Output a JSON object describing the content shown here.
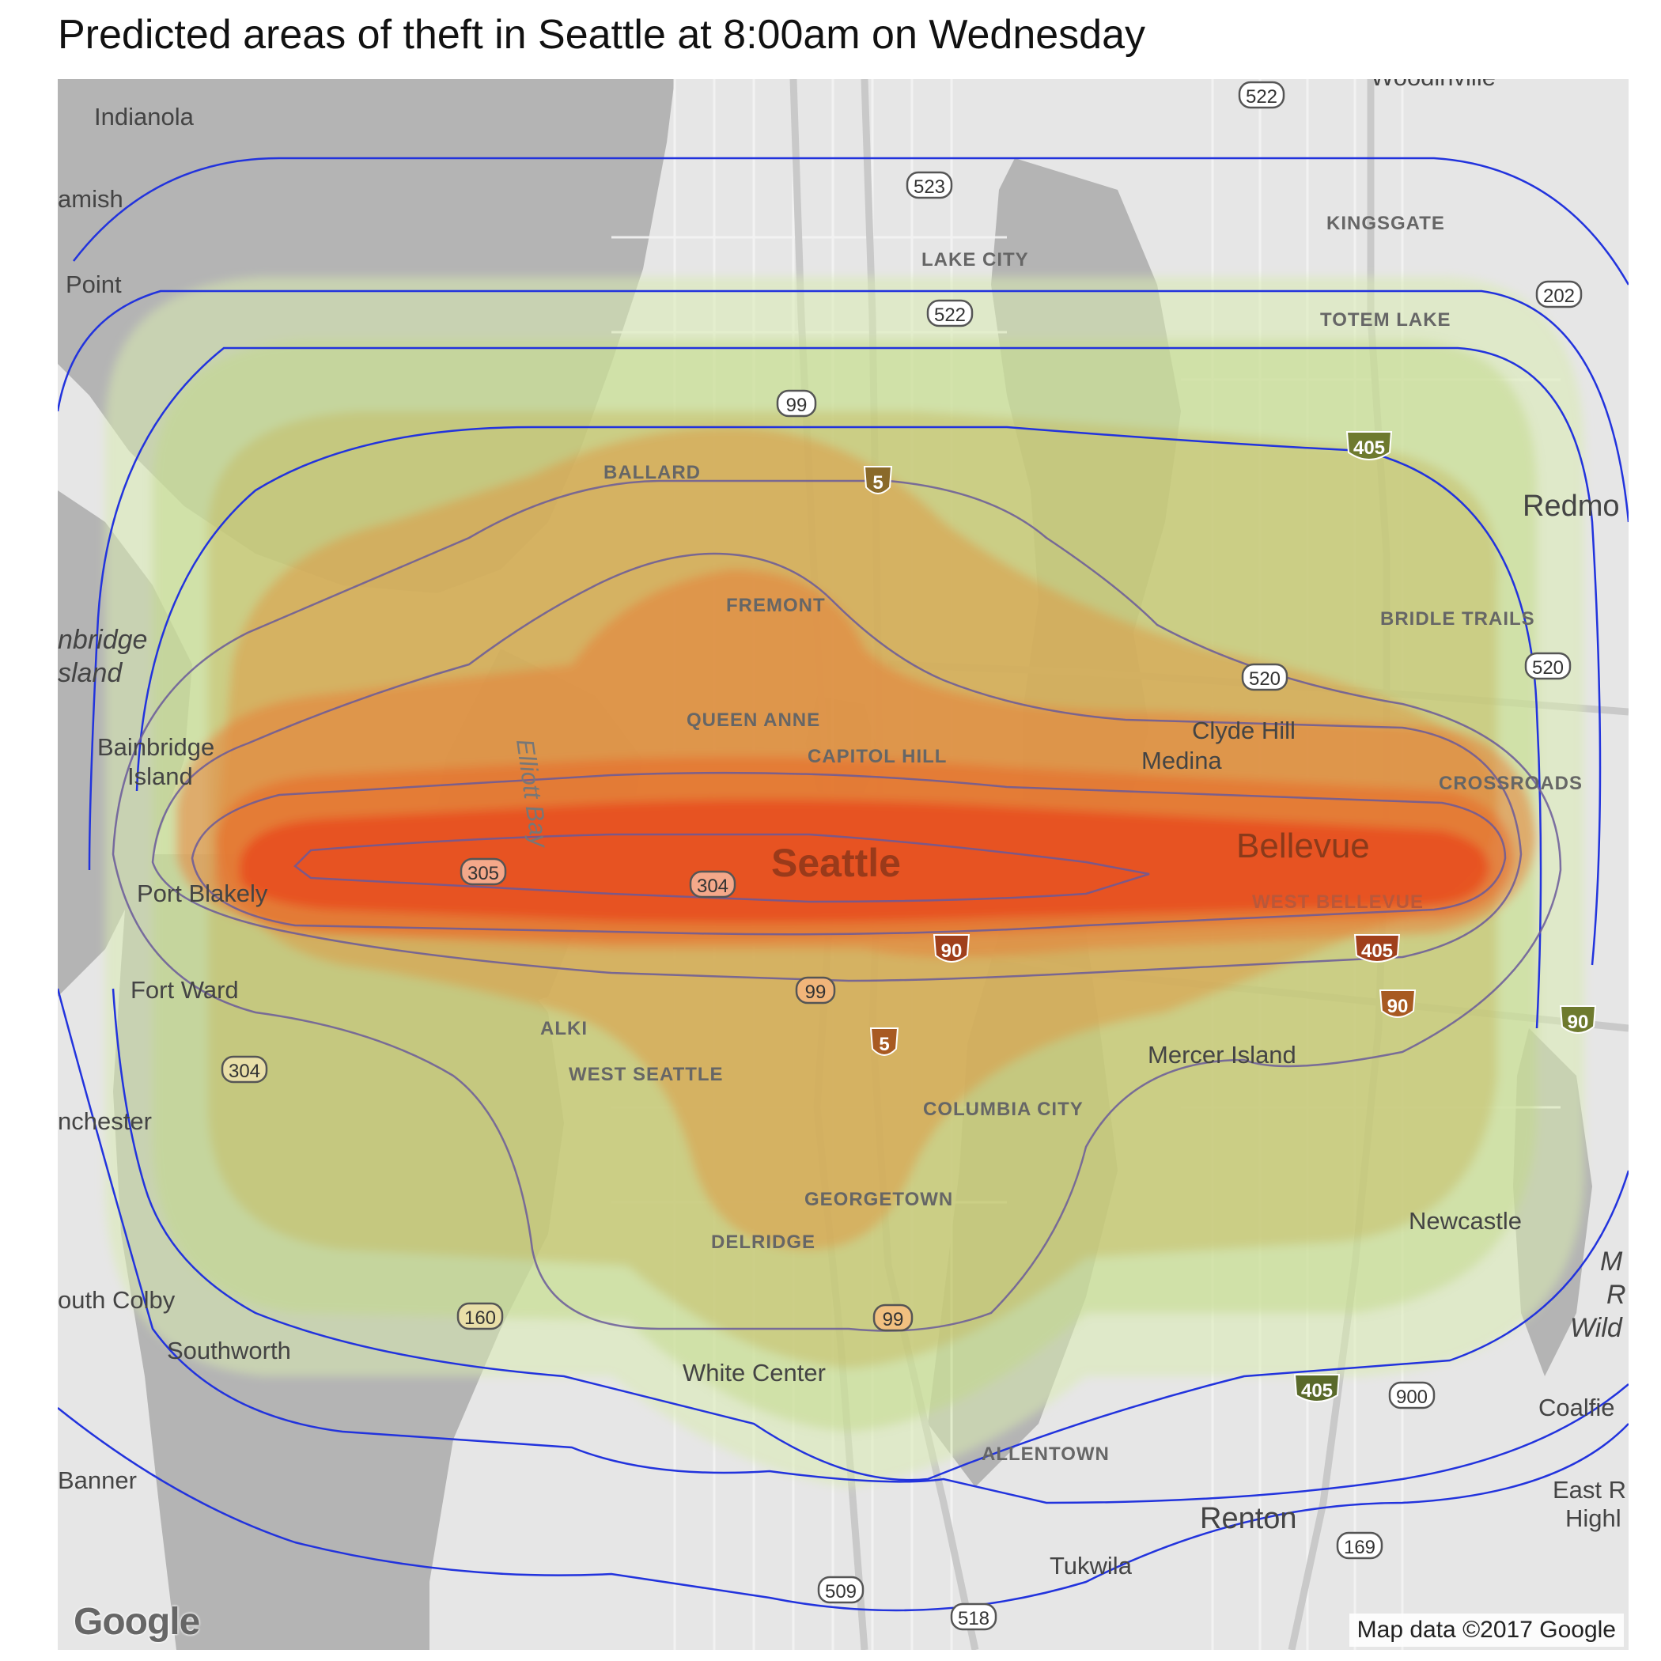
{
  "title": "Predicted areas of theft in Seattle at 8:00am on Wednesday",
  "map": {
    "attribution": "Map data ©2017 Google",
    "logo": "Google",
    "colors": {
      "water": "#b4b4b4",
      "land": "#e6e6e6",
      "contour_line": "#2233dd",
      "fill_low": "#d8ebb0",
      "fill_high": "#e84a1c"
    },
    "place_labels": {
      "indianola": "Indianola",
      "suquamish": "amish",
      "point": "Point",
      "bainbridge_ital_1": "nbridge",
      "bainbridge_ital_2": "sland",
      "bainbridge_island_1": "Bainbridge",
      "bainbridge_island_2": "Island",
      "port_blakely": "Port Blakely",
      "fort_ward": "Fort Ward",
      "manchester": "nchester",
      "south_colby": "outh Colby",
      "southworth": "Southworth",
      "banner": "Banner",
      "white_center": "White Center",
      "renton": "Renton",
      "tukwila": "Tukwila",
      "mercer_island": "Mercer Island",
      "newcastle": "Newcastle",
      "clyde_hill": "Clyde Hill",
      "medina": "Medina",
      "bellevue": "Bellevue",
      "seattle": "Seattle",
      "redmond": "Redmo",
      "woodinville": "Woodinville",
      "coalfield": "Coalfie",
      "east_r": "East R",
      "high": "Highl",
      "wil_1": "M",
      "wil_2": "R",
      "wil_3": "Wild"
    },
    "district_labels": {
      "ballard": "BALLARD",
      "fremont": "FREMONT",
      "queen_anne": "QUEEN ANNE",
      "capitol_hill": "CAPITOL HILL",
      "lake_city": "LAKE CITY",
      "kingsgate": "KINGSGATE",
      "totem_lake": "TOTEM LAKE",
      "bridle_trails": "BRIDLE TRAILS",
      "crossroads": "CROSSROADS",
      "west_bellevue": "WEST BELLEVUE",
      "alki": "ALKI",
      "west_seattle": "WEST SEATTLE",
      "columbia_city": "COLUMBIA CITY",
      "georgetown": "GEORGETOWN",
      "delridge": "DELRIDGE",
      "allentown": "ALLENTOWN"
    },
    "water_labels": {
      "elliott_bay": "Elliott Bay"
    },
    "route_shields": {
      "r522_top": "522",
      "r523": "523",
      "r522": "522",
      "r202": "202",
      "r99_n": "99",
      "r520_w": "520",
      "r520_e": "520",
      "r305": "305",
      "r304_e": "304",
      "r304_w": "304",
      "r99_mid": "99",
      "r160": "160",
      "r99_s": "99",
      "r900": "900",
      "r169": "169",
      "r509": "509",
      "r518": "518"
    },
    "interstate_shields": {
      "i405_n": "405",
      "i5_n": "5",
      "i90_w": "90",
      "i405_mid": "405",
      "i90_mid": "90",
      "i5_s": "5",
      "i90_e": "90",
      "i405_s": "405"
    }
  }
}
